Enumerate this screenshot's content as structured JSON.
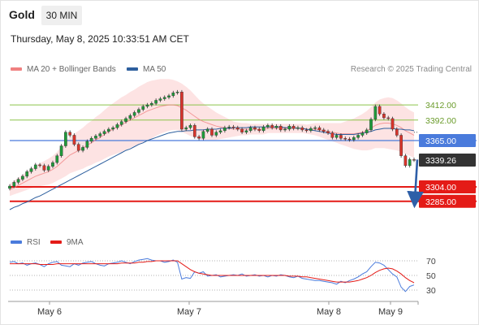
{
  "header": {
    "asset": "Gold",
    "timeframe": "30 MIN",
    "datetime": "Thursday, May 8, 2025 10:33:51 AM CET",
    "credit": "Research © 2025 Trading Central"
  },
  "colors": {
    "ma20": "#f08080",
    "ma50": "#2d5f9e",
    "resistance": "#8bc34a",
    "pivot": "#4a7bdc",
    "support": "#e41b17",
    "current": "#333333",
    "arrow": "#2e5fa8",
    "up_candle": "#1f9a3a",
    "down_candle": "#d9342b",
    "rsi": "#4a7bdc",
    "rsi_ma": "#e41b17"
  },
  "chart_data": [
    {
      "type": "candlestick",
      "legend": [
        "MA 20 + Bollinger Bands",
        "MA 50"
      ],
      "legend_placement": "top-left",
      "x_ticks": [
        "May 6",
        "May 7",
        "May 8",
        "May 9"
      ],
      "y_range": [
        3270,
        3440
      ],
      "levels": [
        {
          "label": "3412.00",
          "value": 3412.0,
          "kind": "resistance"
        },
        {
          "label": "3392.00",
          "value": 3392.0,
          "kind": "resistance"
        },
        {
          "label": "3365.00",
          "value": 3365.0,
          "kind": "pivot"
        },
        {
          "label": "3304.00",
          "value": 3304.0,
          "kind": "support"
        },
        {
          "label": "3285.00",
          "value": 3285.0,
          "kind": "support"
        }
      ],
      "current_price": {
        "label": "3339.26",
        "value": 3339.26
      },
      "forecast_arrow": {
        "from": 3340,
        "to": 3287
      },
      "close": [
        3305,
        3310,
        3314,
        3318,
        3324,
        3328,
        3333,
        3332,
        3326,
        3331,
        3336,
        3345,
        3358,
        3376,
        3372,
        3360,
        3352,
        3356,
        3364,
        3368,
        3371,
        3374,
        3377,
        3380,
        3382,
        3386,
        3390,
        3394,
        3398,
        3402,
        3406,
        3410,
        3412,
        3414,
        3418,
        3420,
        3422,
        3424,
        3428,
        3429,
        3380,
        3382,
        3385,
        3370,
        3368,
        3377,
        3380,
        3372,
        3376,
        3378,
        3382,
        3383,
        3382,
        3380,
        3376,
        3378,
        3382,
        3380,
        3378,
        3383,
        3385,
        3382,
        3384,
        3379,
        3380,
        3384,
        3381,
        3382,
        3379,
        3378,
        3381,
        3382,
        3379,
        3377,
        3375,
        3369,
        3372,
        3368,
        3367,
        3366,
        3369,
        3372,
        3375,
        3379,
        3393,
        3410,
        3400,
        3395,
        3394,
        3380,
        3372,
        3345,
        3332,
        3340,
        3339.26
      ],
      "ma20": [
        3300,
        3303,
        3306,
        3309,
        3312,
        3315,
        3318,
        3320,
        3322,
        3324,
        3327,
        3331,
        3336,
        3341,
        3346,
        3349,
        3352,
        3355,
        3359,
        3362,
        3366,
        3369,
        3373,
        3377,
        3380,
        3383,
        3386,
        3389,
        3392,
        3395,
        3398,
        3401,
        3404,
        3406,
        3408,
        3410,
        3411,
        3412,
        3412,
        3411,
        3408,
        3405,
        3401,
        3397,
        3393,
        3390,
        3388,
        3386,
        3384,
        3383,
        3382,
        3381,
        3380,
        3380,
        3380,
        3380,
        3380,
        3380,
        3380,
        3380,
        3381,
        3381,
        3381,
        3381,
        3381,
        3381,
        3381,
        3381,
        3381,
        3380,
        3380,
        3380,
        3379,
        3378,
        3377,
        3376,
        3375,
        3374,
        3374,
        3374,
        3374,
        3375,
        3376,
        3378,
        3381,
        3385,
        3387,
        3388,
        3388,
        3387,
        3385,
        3382,
        3378,
        3375,
        3372
      ],
      "ma50": [
        3274,
        3277,
        3279,
        3282,
        3284,
        3287,
        3290,
        3292,
        3295,
        3298,
        3301,
        3304,
        3307,
        3310,
        3313,
        3316,
        3319,
        3322,
        3325,
        3328,
        3331,
        3334,
        3337,
        3340,
        3343,
        3346,
        3349,
        3352,
        3354,
        3357,
        3360,
        3362,
        3365,
        3367,
        3369,
        3371,
        3373,
        3375,
        3376,
        3377,
        3377,
        3378,
        3378,
        3379,
        3379,
        3379,
        3380,
        3380,
        3380,
        3381,
        3381,
        3381,
        3382,
        3382,
        3382,
        3382,
        3383,
        3383,
        3383,
        3383,
        3383,
        3383,
        3383,
        3383,
        3382,
        3382,
        3382,
        3381,
        3381,
        3380,
        3379,
        3378,
        3377,
        3376,
        3375,
        3374,
        3373,
        3373,
        3373,
        3373,
        3373,
        3374,
        3375,
        3376,
        3377,
        3379,
        3380,
        3381,
        3381,
        3381,
        3380,
        3380,
        3379,
        3379,
        3378
      ],
      "band_width": [
        8,
        9,
        10,
        11,
        12,
        13,
        14,
        15,
        16,
        17,
        18,
        19,
        21,
        23,
        24,
        25,
        26,
        27,
        28,
        29,
        30,
        31,
        32,
        33,
        34,
        35,
        36,
        36,
        37,
        37,
        38,
        38,
        38,
        38,
        37,
        36,
        35,
        34,
        33,
        32,
        32,
        31,
        30,
        28,
        26,
        24,
        22,
        20,
        18,
        16,
        14,
        12,
        10,
        9,
        8,
        8,
        7,
        7,
        7,
        7,
        6,
        6,
        6,
        6,
        6,
        6,
        6,
        6,
        6,
        6,
        7,
        8,
        9,
        10,
        11,
        12,
        13,
        14,
        16,
        18,
        20,
        22,
        24,
        26,
        28,
        30,
        32,
        33,
        34,
        34,
        33,
        32,
        31,
        30,
        30
      ]
    },
    {
      "type": "line",
      "legend": [
        "RSI",
        "9MA"
      ],
      "legend_placement": "top-left",
      "y_ticks": [
        70,
        50,
        30
      ],
      "y_range": [
        18,
        82
      ],
      "series": [
        {
          "name": "RSI",
          "values": [
            68,
            69,
            66,
            67,
            64,
            66,
            67,
            65,
            62,
            66,
            68,
            69,
            64,
            63,
            62,
            66,
            64,
            67,
            68,
            69,
            66,
            64,
            63,
            66,
            67,
            68,
            70,
            68,
            66,
            69,
            71,
            72,
            73,
            71,
            70,
            70,
            68,
            69,
            71,
            68,
            45,
            47,
            46,
            55,
            53,
            55,
            49,
            50,
            51,
            48,
            49,
            50,
            51,
            50,
            52,
            49,
            50,
            51,
            49,
            50,
            48,
            50,
            49,
            51,
            50,
            48,
            47,
            49,
            46,
            45,
            44,
            43,
            43,
            42,
            41,
            40,
            38,
            42,
            40,
            43,
            45,
            48,
            52,
            55,
            62,
            68,
            67,
            64,
            58,
            52,
            48,
            34,
            28,
            35,
            37
          ]
        },
        {
          "name": "9MA",
          "values": [
            66,
            66,
            66,
            66,
            66,
            66,
            66,
            65,
            65,
            65,
            65,
            66,
            66,
            66,
            66,
            66,
            66,
            66,
            66,
            66,
            66,
            66,
            66,
            66,
            66,
            66,
            67,
            67,
            67,
            67,
            68,
            68,
            69,
            69,
            70,
            70,
            70,
            70,
            70,
            70,
            66,
            62,
            58,
            55,
            53,
            52,
            51,
            50,
            50,
            50,
            50,
            50,
            50,
            50,
            50,
            50,
            50,
            50,
            50,
            50,
            50,
            50,
            50,
            50,
            50,
            49,
            49,
            49,
            48,
            48,
            47,
            46,
            45,
            44,
            43,
            42,
            41,
            41,
            41,
            41,
            42,
            43,
            45,
            47,
            50,
            54,
            57,
            59,
            60,
            59,
            56,
            52,
            47,
            43,
            40
          ]
        }
      ]
    }
  ]
}
